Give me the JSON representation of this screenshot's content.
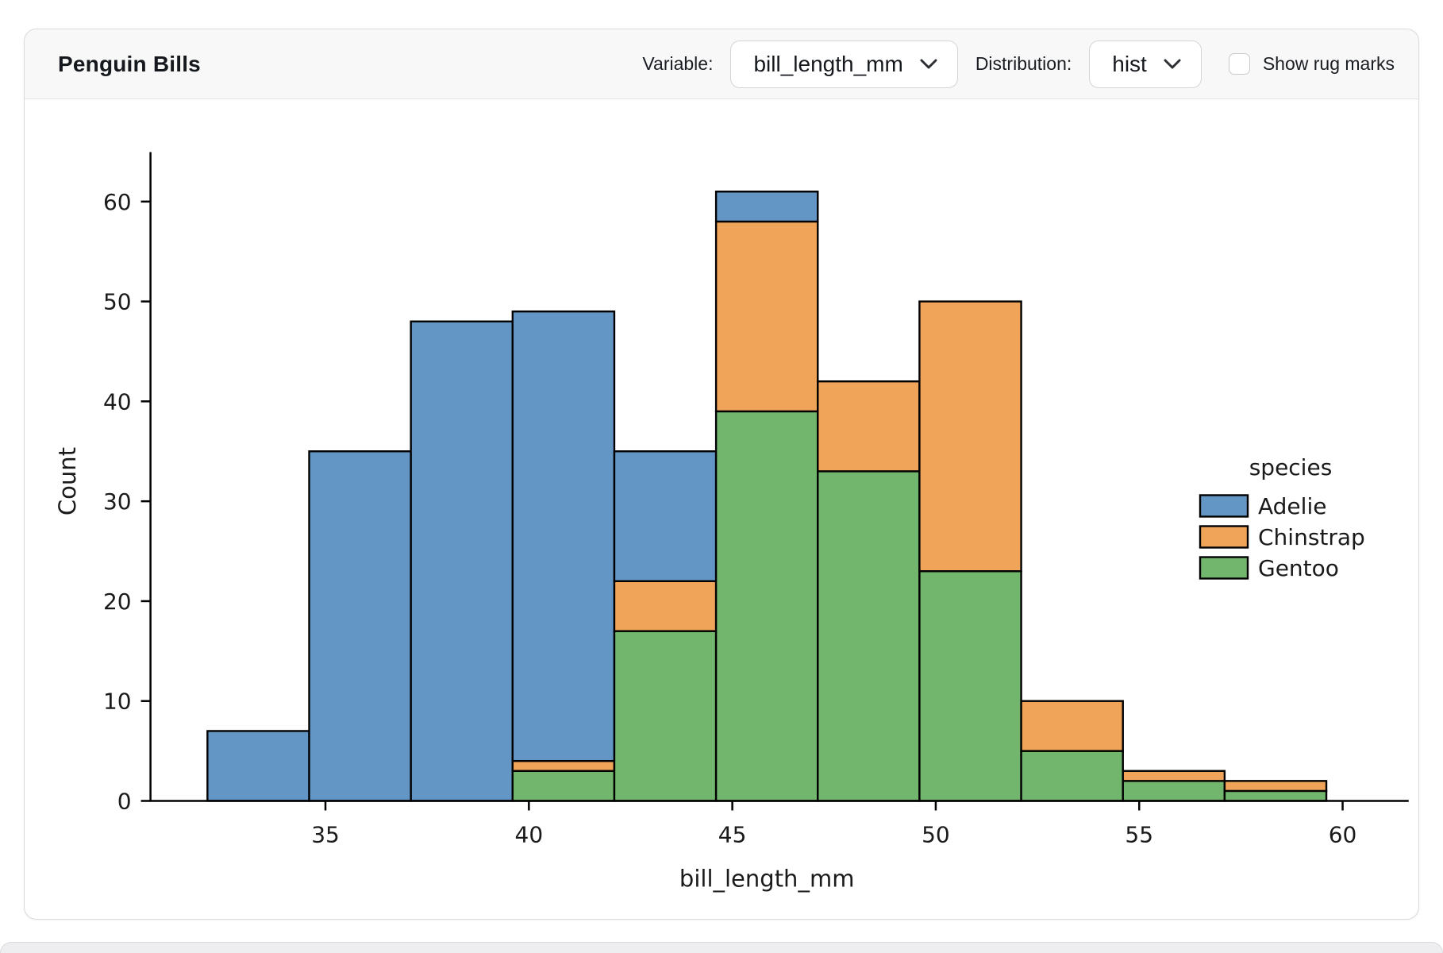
{
  "card": {
    "title": "Penguin Bills",
    "controls": {
      "variable_label": "Variable:",
      "variable_value": "bill_length_mm",
      "distribution_label": "Distribution:",
      "distribution_value": "hist",
      "rug_label": "Show rug marks",
      "rug_checked": false
    }
  },
  "chart_data": {
    "type": "bar",
    "subtype": "stacked_histogram",
    "title": "",
    "xlabel": "bill_length_mm",
    "ylabel": "Count",
    "legend_title": "species",
    "legend_position": "right",
    "grid": false,
    "bin_edges": [
      32.1,
      34.6,
      37.1,
      39.6,
      42.1,
      44.6,
      47.1,
      49.6,
      52.1,
      54.6,
      57.1,
      59.6
    ],
    "bin_totals": [
      7,
      35,
      48,
      49,
      35,
      61,
      42,
      50,
      10,
      3,
      2
    ],
    "series": [
      {
        "name": "Adelie",
        "color": "#6496c5",
        "values": [
          7,
          35,
          48,
          45,
          13,
          3,
          0,
          0,
          0,
          0,
          0
        ]
      },
      {
        "name": "Chinstrap",
        "color": "#f0a45a",
        "values": [
          0,
          0,
          0,
          1,
          5,
          19,
          9,
          27,
          5,
          1,
          1
        ]
      },
      {
        "name": "Gentoo",
        "color": "#72b56d",
        "values": [
          0,
          0,
          0,
          3,
          17,
          39,
          33,
          23,
          5,
          2,
          1
        ]
      }
    ],
    "stack_order_bottom_to_top": [
      "Gentoo",
      "Chinstrap",
      "Adelie"
    ],
    "edge_color": "#000000",
    "text_color": "#1a1a1a",
    "x_ticks": [
      35,
      40,
      45,
      50,
      55,
      60
    ],
    "y_ticks": [
      0,
      10,
      20,
      30,
      40,
      50,
      60
    ],
    "xlim": [
      30.7,
      61.0
    ],
    "ylim": [
      0,
      64
    ]
  }
}
